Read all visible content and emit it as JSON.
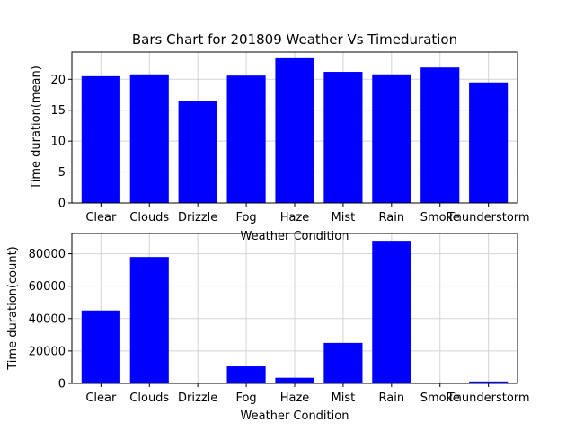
{
  "chart_data": [
    {
      "type": "bar",
      "title": "Bars Chart for 201809 Weather Vs Timeduration",
      "xlabel": "Weather Condition",
      "ylabel": "Time duration(mean)",
      "categories": [
        "Clear",
        "Clouds",
        "Drizzle",
        "Fog",
        "Haze",
        "Mist",
        "Rain",
        "Smoke",
        "Thunderstorm"
      ],
      "values": [
        20.5,
        20.8,
        16.5,
        20.6,
        23.4,
        21.2,
        20.8,
        21.9,
        19.5
      ],
      "ylim": [
        0,
        24.4
      ],
      "yticks": [
        0,
        5,
        10,
        15,
        20
      ],
      "grid": true,
      "color": "#0000ff"
    },
    {
      "type": "bar",
      "title": "",
      "xlabel": "Weather Condition",
      "ylabel": "Time duration(count)",
      "categories": [
        "Clear",
        "Clouds",
        "Drizzle",
        "Fog",
        "Haze",
        "Mist",
        "Rain",
        "Smoke",
        "Thunderstorm"
      ],
      "values": [
        45000,
        78000,
        150,
        10500,
        3500,
        25000,
        88000,
        150,
        1200
      ],
      "ylim": [
        0,
        92500
      ],
      "yticks": [
        0,
        20000,
        40000,
        60000,
        80000
      ],
      "grid": true,
      "color": "#0000ff"
    }
  ]
}
